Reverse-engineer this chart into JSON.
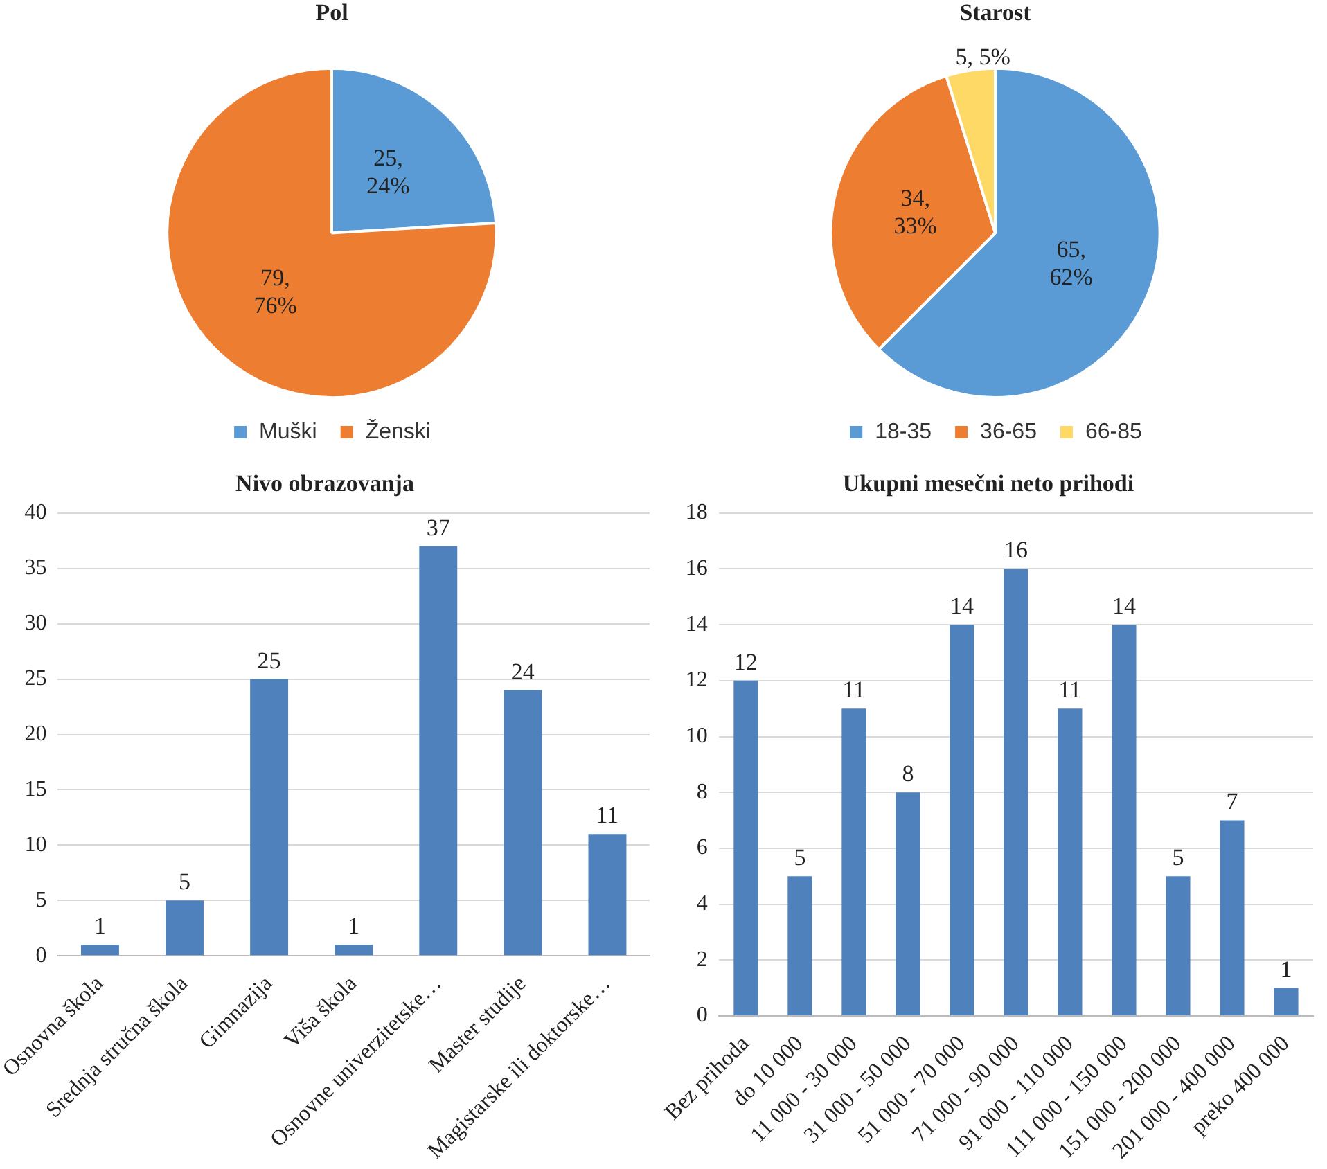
{
  "chart_data": [
    {
      "type": "pie",
      "title": "Pol",
      "categories": [
        "Muški",
        "Ženski"
      ],
      "values": [
        25,
        79
      ],
      "colors": [
        "#5b9bd5",
        "#ed7d31"
      ],
      "value_labels": [
        "25, 24%",
        "79, 76%"
      ],
      "legend": "bottom"
    },
    {
      "type": "pie",
      "title": "Starost",
      "categories": [
        "18-35",
        "36-65",
        "66-85"
      ],
      "values": [
        65,
        34,
        5
      ],
      "colors": [
        "#5b9bd5",
        "#ed7d31",
        "#ffd966"
      ],
      "value_labels": [
        "65, 62%",
        "34, 33%",
        "5, 5%"
      ],
      "legend": "bottom"
    },
    {
      "type": "bar",
      "title": "Nivo obrazovanja",
      "categories": [
        "Osnovna škola",
        "Srednja stručna škola",
        "Gimnazija",
        "Viša škola",
        "Osnovne univerzitetske…",
        "Master studije",
        "Magistarske ili doktorske…"
      ],
      "values": [
        1,
        5,
        25,
        1,
        37,
        24,
        11
      ],
      "color": "#4f81bd",
      "ylim": [
        0,
        40
      ],
      "yticks": [
        0,
        5,
        10,
        15,
        20,
        25,
        30,
        35,
        40
      ],
      "grid": "y",
      "data_labels": true
    },
    {
      "type": "bar",
      "title": "Ukupni mesečni neto prihodi",
      "categories": [
        "Bez prihoda",
        "do 10 000",
        "11 000 - 30 000",
        "31 000 - 50 000",
        "51 000 - 70 000",
        "71 000 - 90 000",
        "91 000 - 110 000",
        "111 000 - 150 000",
        "151 000 - 200 000",
        "201 000 - 400 000",
        "preko 400 000"
      ],
      "values": [
        12,
        5,
        11,
        8,
        14,
        16,
        11,
        14,
        5,
        7,
        1
      ],
      "color": "#4f81bd",
      "ylim": [
        0,
        18
      ],
      "yticks": [
        0,
        2,
        4,
        6,
        8,
        10,
        12,
        14,
        16,
        18
      ],
      "grid": "y",
      "data_labels": true
    }
  ]
}
